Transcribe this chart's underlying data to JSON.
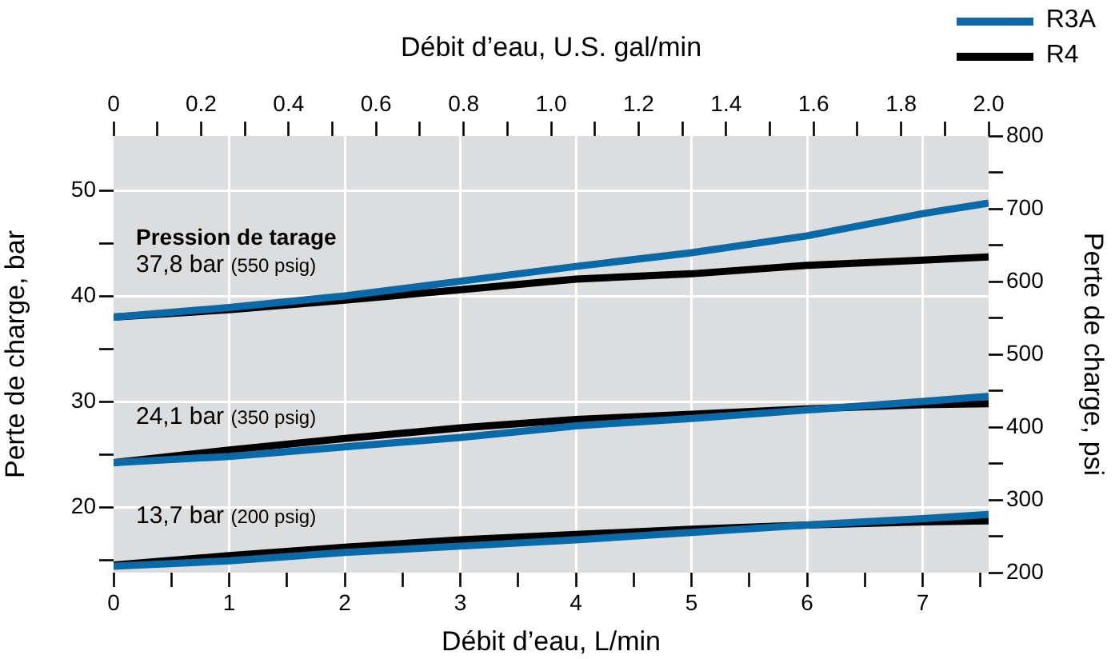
{
  "chart_data": {
    "type": "line",
    "xlabel": "Débit d’eau, L/min",
    "x2label": "Débit d’eau, U.S. gal/min",
    "ylabel": "Perte de charge, bar",
    "y2label": "Perte de charge, psi",
    "x": [
      0,
      1,
      2,
      3,
      4,
      5,
      6,
      7,
      7.57
    ],
    "xlim": [
      0,
      7.57
    ],
    "xticks": [
      0,
      {
        "value": 0.5,
        "label": null
      },
      1,
      {
        "value": 1.5,
        "label": null
      },
      2,
      {
        "value": 2.5,
        "label": null
      },
      3,
      {
        "value": 3.5,
        "label": null
      },
      4,
      {
        "value": 4.5,
        "label": null
      },
      5,
      {
        "value": 5.5,
        "label": null
      },
      6,
      {
        "value": 6.5,
        "label": null
      },
      7,
      {
        "value": 7.5,
        "label": null
      }
    ],
    "x2lim": [
      0,
      2
    ],
    "x2ticks": [
      0,
      {
        "value": 0.1,
        "label": null
      },
      0.2,
      {
        "value": 0.3,
        "label": null
      },
      0.4,
      {
        "value": 0.5,
        "label": null
      },
      0.6,
      {
        "value": 0.7,
        "label": null
      },
      0.8,
      {
        "value": 0.9,
        "label": null
      },
      {
        "value": 1,
        "label": "1.0"
      },
      {
        "value": 1.1,
        "label": null
      },
      1.2,
      {
        "value": 1.3,
        "label": null
      },
      1.4,
      {
        "value": 1.5,
        "label": null
      },
      1.6,
      {
        "value": 1.7,
        "label": null
      },
      1.8,
      {
        "value": 1.9,
        "label": null
      },
      {
        "value": 2,
        "label": "2.0"
      }
    ],
    "ylim": [
      13.79,
      55.16
    ],
    "yticks": [
      {
        "value": 15,
        "label": null
      },
      20,
      {
        "value": 25,
        "label": null
      },
      30,
      {
        "value": 35,
        "label": null
      },
      40,
      {
        "value": 45,
        "label": null
      },
      50
    ],
    "y2lim": [
      200,
      800
    ],
    "y2ticks": [
      200,
      {
        "value": 250,
        "label": null
      },
      300,
      {
        "value": 350,
        "label": null
      },
      400,
      {
        "value": 450,
        "label": null
      },
      500,
      {
        "value": 550,
        "label": null
      },
      600,
      {
        "value": 650,
        "label": null
      },
      700,
      {
        "value": 750,
        "label": null
      },
      800
    ],
    "series": [
      {
        "name": "R3A",
        "color": "#0a6aa8",
        "values": [
          38.0,
          38.9,
          40.0,
          41.4,
          42.8,
          44.1,
          45.7,
          47.8,
          48.8
        ]
      },
      {
        "name": "R4",
        "color": "#000000",
        "values": [
          38.0,
          38.7,
          39.6,
          40.6,
          41.6,
          42.1,
          42.9,
          43.4,
          43.7
        ]
      },
      {
        "color": "#0a6aa8",
        "values": [
          24.2,
          24.8,
          25.7,
          26.6,
          27.7,
          28.4,
          29.2,
          30.0,
          30.5
        ]
      },
      {
        "color": "#000000",
        "values": [
          24.2,
          25.4,
          26.5,
          27.5,
          28.3,
          28.8,
          29.3,
          29.7,
          29.8
        ]
      },
      {
        "color": "#0a6aa8",
        "values": [
          14.4,
          14.9,
          15.7,
          16.3,
          16.9,
          17.6,
          18.3,
          18.9,
          19.3
        ]
      },
      {
        "color": "#000000",
        "values": [
          14.5,
          15.4,
          16.2,
          16.9,
          17.4,
          17.9,
          18.3,
          18.6,
          18.7
        ]
      }
    ],
    "annotations": [
      "Pression de tarage",
      "37,8 bar (550 psig)",
      "24,1 bar (350 psig)",
      "13,7 bar (200 psig)"
    ],
    "grid": true,
    "legend": "top right",
    "marker": "none"
  }
}
